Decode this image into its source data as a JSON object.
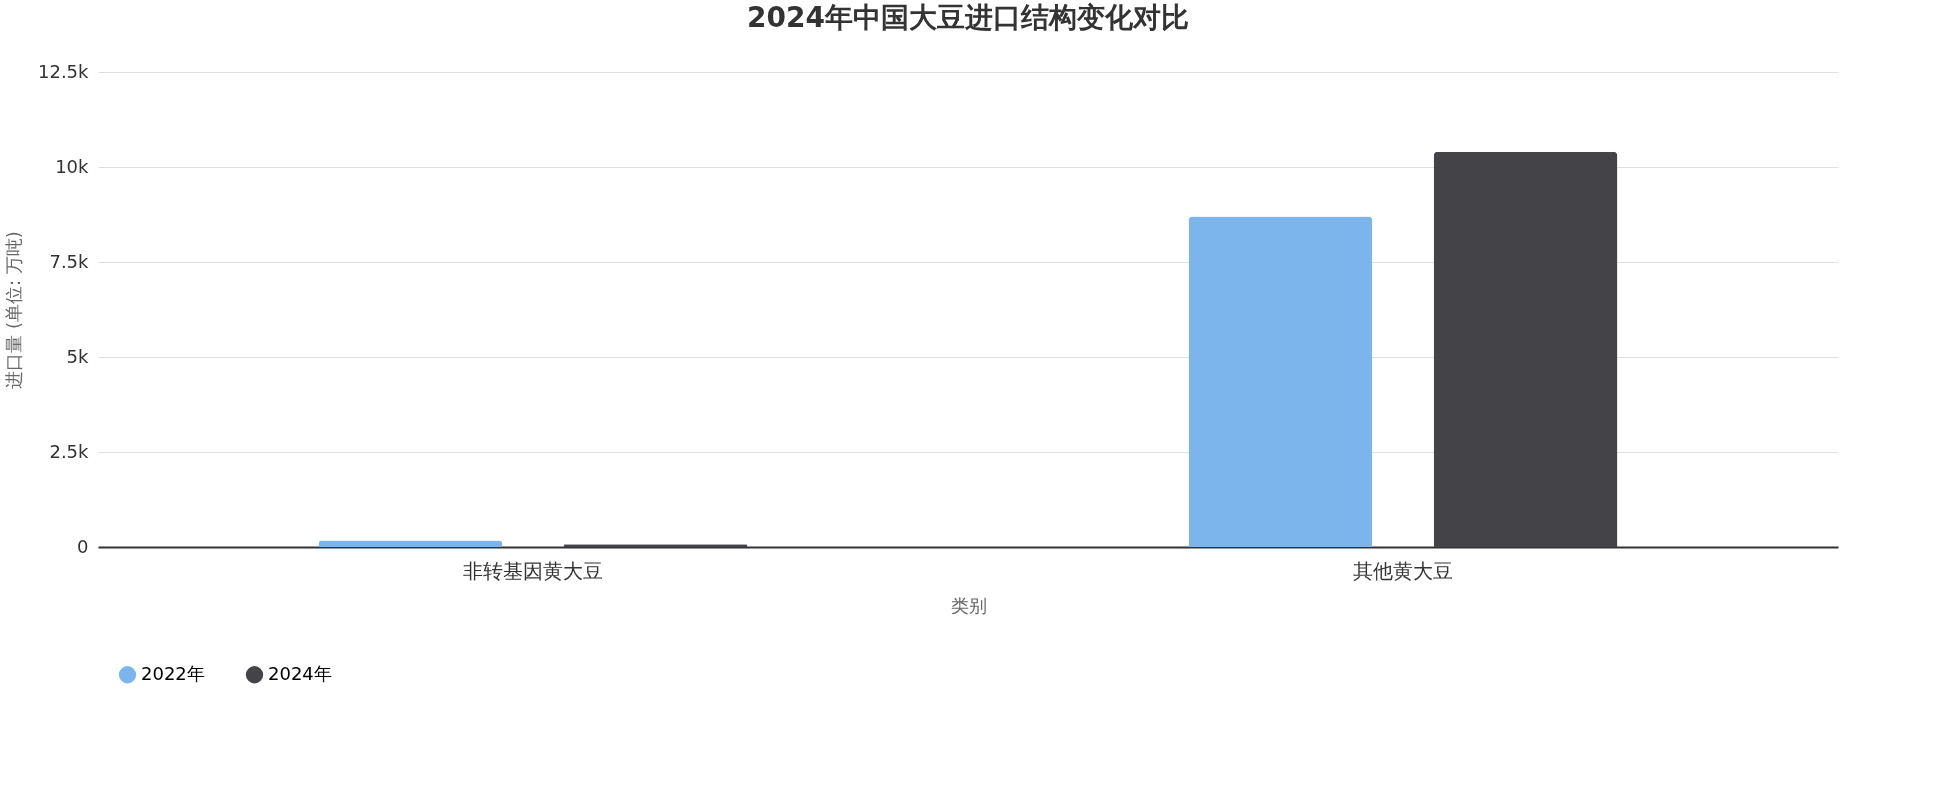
{
  "chart_data": {
    "type": "bar",
    "title": "2024年中国大豆进口结构变化对比",
    "xlabel": "类别",
    "ylabel": "进口量 (单位: 万吨)",
    "categories": [
      "非转基因黄大豆",
      "其他黄大豆"
    ],
    "series": [
      {
        "name": "2022年",
        "color": "#7cb5ec",
        "values": [
          170,
          8700
        ]
      },
      {
        "name": "2024年",
        "color": "#434348",
        "values": [
          70,
          10400
        ]
      }
    ],
    "ylim": [
      0,
      12500
    ],
    "yticks": [
      0,
      {
        "value": 2500,
        "label": "2.5k"
      },
      {
        "value": 5000,
        "label": "5k"
      },
      {
        "value": 7500,
        "label": "7.5k"
      },
      {
        "value": 10000,
        "label": "10k"
      },
      {
        "value": 12500,
        "label": "12.5k"
      }
    ],
    "grid": "y",
    "legend": "bottom"
  }
}
